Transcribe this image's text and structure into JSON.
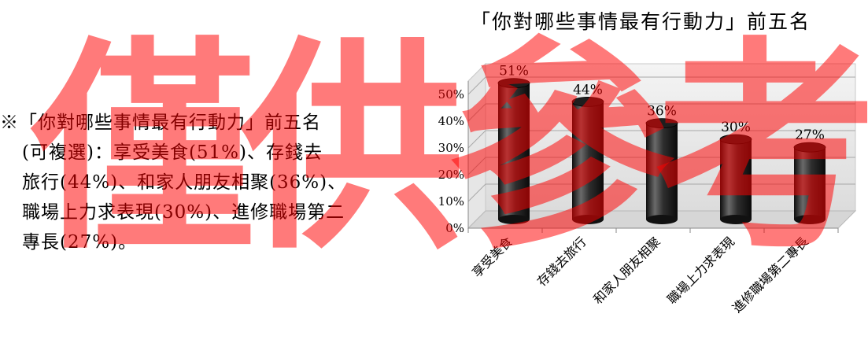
{
  "description": {
    "lines": [
      "※「你對哪些事情最有行動力」前五名",
      "(可複選)：享受美食(51%)、存錢去",
      "旅行(44%)、和家人朋友相聚(36%)、",
      "職場上力求表現(30%)、進修職場第二",
      "專長(27%)。"
    ]
  },
  "watermark": {
    "chars": [
      "僅",
      "供",
      "參",
      "考"
    ],
    "color": "#ff0000"
  },
  "chart_data": {
    "type": "bar",
    "title": "「你對哪些事情最有行動力」前五名",
    "categories": [
      "享受美食",
      "存錢去旅行",
      "和家人朋友相聚",
      "職場上力求表現",
      "進修職場第二專長"
    ],
    "values": [
      51,
      44,
      36,
      30,
      27
    ],
    "value_labels": [
      "51%",
      "44%",
      "36%",
      "30%",
      "27%"
    ],
    "yticks": [
      "0%",
      "10%",
      "20%",
      "30%",
      "40%",
      "50%"
    ],
    "ylim": [
      0,
      55
    ],
    "grid": true,
    "bar_style": "3d-cylinder",
    "bar_color": "#2a2a2a"
  }
}
